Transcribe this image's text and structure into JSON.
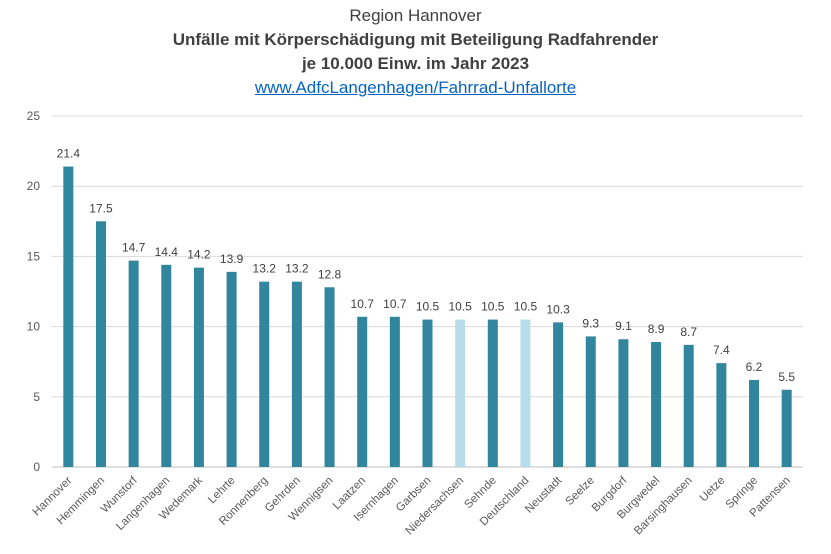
{
  "chart_data": {
    "type": "bar",
    "title_line1": "Region Hannover",
    "title_line2": "Unfälle mit Körperschädigung mit Beteiligung Radfahrender",
    "title_line3": "je 10.000 Einw. im Jahr 2023",
    "link": "www.AdfcLangenhagen/Fahrrad-Unfallorte",
    "xlabel": "",
    "ylabel": "",
    "ylim": [
      0,
      25
    ],
    "yticks": [
      0,
      5,
      10,
      15,
      20,
      25
    ],
    "grid": true,
    "categories": [
      "Hannover",
      "Hemmingen",
      "Wunstorf",
      "Langenhagen",
      "Wedemark",
      "Lehrte",
      "Ronnenberg",
      "Gehrden",
      "Wennigsen",
      "Laatzen",
      "Isernhagen",
      "Garbsen",
      "Niedersachsen",
      "Sehnde",
      "Deutschland",
      "Neustadt",
      "Seelze",
      "Burgdorf",
      "Burgwedel",
      "Barsinghausen",
      "Uetze",
      "Springe",
      "Pattensen"
    ],
    "values": [
      21.4,
      17.5,
      14.7,
      14.4,
      14.2,
      13.9,
      13.2,
      13.2,
      12.8,
      10.7,
      10.7,
      10.5,
      10.5,
      10.5,
      10.5,
      10.3,
      9.3,
      9.1,
      8.9,
      8.7,
      7.4,
      6.2,
      5.5
    ],
    "data_labels": [
      "21.4",
      "17.5",
      "14.7",
      "14.4",
      "14.2",
      "13.9",
      "13.2",
      "13.2",
      "12.8",
      "10.7",
      "10.7",
      "10.5",
      "10.5",
      "10.5",
      "10.5",
      "10.3",
      "9.3",
      "9.1",
      "8.9",
      "8.7",
      "7.4",
      "6.2",
      "5.5"
    ],
    "highlight_categories": [
      "Niedersachsen",
      "Deutschland"
    ],
    "colors": {
      "bar": "#31859c",
      "highlight": "#b7dde8",
      "grid": "#d9d9d9",
      "link": "#0563c1"
    }
  }
}
